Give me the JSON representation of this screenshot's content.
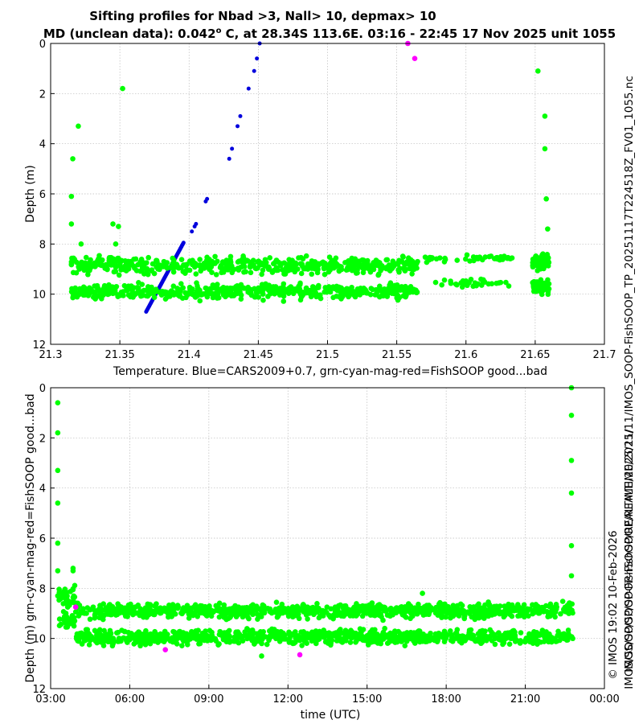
{
  "colors": {
    "model": "#0000dd",
    "good": "#00ff00",
    "suspect": "#ff00ff",
    "grid": "#bbbbbb"
  },
  "side_labels": {
    "file_path": "IMOS_SOOP-FishSOOP_TP_20251117T224518Z_FV01_1055.nc",
    "archive_path": "IMOS/SOOP/SOOP-FishSOOP/REALTIME/2025/11/",
    "credit": "© IMOS 19:02 10-Feb-2026",
    "archive_dir": "IMOS/SOOP/SOOP-FishSOOP/REALTIME/2025/11/"
  },
  "chart_data": [
    {
      "type": "scatter",
      "title": "Sifting profiles for Nbad >3, Nall> 10, depmax> 10",
      "subtitle_pre": "MD (unclean data): 0.042",
      "subtitle_sup": "o",
      "subtitle_post": " C, at 28.34S 113.6E. 03:16 - 22:45 17 Nov 2025 unit 1055",
      "xlabel": "Temperature. Blue=CARS2009+0.7, grn-cyan-mag-red=FishSOOP good...bad",
      "ylabel": "Depth (m)",
      "xlim": [
        21.3,
        21.7
      ],
      "ylim": [
        0,
        12
      ],
      "y_reversed": true,
      "grid": true,
      "xticks": [
        21.3,
        21.35,
        21.4,
        21.45,
        21.5,
        21.55,
        21.6,
        21.65,
        21.7
      ],
      "xtick_labels": [
        "21.3",
        "21.35",
        "21.4",
        "21.45",
        "21.5",
        "21.55",
        "21.6",
        "21.65",
        "21.7"
      ],
      "yticks": [
        0,
        2,
        4,
        6,
        8,
        10,
        12
      ],
      "ytick_labels": [
        "0",
        "2",
        "4",
        "6",
        "8",
        "10",
        "12"
      ],
      "series": [
        {
          "name": "CARS2009+0.7",
          "color_key": "model",
          "points": [
            [
              21.451,
              0.0
            ],
            [
              21.449,
              0.6
            ],
            [
              21.447,
              1.1
            ],
            [
              21.443,
              1.8
            ],
            [
              21.437,
              2.9
            ],
            [
              21.435,
              3.3
            ],
            [
              21.431,
              4.2
            ],
            [
              21.429,
              4.6
            ],
            [
              21.413,
              6.2
            ],
            [
              21.412,
              6.3
            ],
            [
              21.405,
              7.2
            ],
            [
              21.404,
              7.3
            ],
            [
              21.402,
              7.5
            ]
          ],
          "linear_profile": {
            "from": [
              21.369,
              10.7
            ],
            "to": [
              21.396,
              7.95
            ],
            "count": 60
          }
        },
        {
          "name": "FishSOOP good",
          "color_key": "good",
          "points": [
            [
              21.315,
              7.2
            ],
            [
              21.315,
              6.1
            ],
            [
              21.316,
              4.6
            ],
            [
              21.32,
              3.3
            ],
            [
              21.352,
              1.8
            ],
            [
              21.652,
              1.1
            ],
            [
              21.657,
              2.9
            ],
            [
              21.657,
              4.2
            ],
            [
              21.658,
              6.2
            ],
            [
              21.659,
              7.4
            ],
            [
              21.345,
              7.2
            ],
            [
              21.349,
              7.3
            ],
            [
              21.322,
              8.0
            ],
            [
              21.347,
              8.0
            ]
          ],
          "bands": [
            {
              "x_range": [
                21.315,
                21.566
              ],
              "depth_center": 8.85,
              "depth_spread": 0.32,
              "count": 520
            },
            {
              "x_range": [
                21.315,
                21.566
              ],
              "depth_center": 9.9,
              "depth_spread": 0.3,
              "count": 520
            },
            {
              "x_range": [
                21.57,
                21.635
              ],
              "depth_center": 8.55,
              "depth_spread": 0.18,
              "count": 40
            },
            {
              "x_range": [
                21.575,
                21.635
              ],
              "depth_center": 9.55,
              "depth_spread": 0.15,
              "count": 35
            },
            {
              "x_range": [
                21.648,
                21.66
              ],
              "depth_center": 8.7,
              "depth_spread": 0.3,
              "count": 60
            },
            {
              "x_range": [
                21.648,
                21.66
              ],
              "depth_center": 9.7,
              "depth_spread": 0.3,
              "count": 60
            }
          ]
        },
        {
          "name": "FishSOOP bad",
          "color_key": "suspect",
          "points": [
            [
              21.558,
              0.0
            ],
            [
              21.563,
              0.6
            ]
          ]
        }
      ]
    },
    {
      "type": "scatter",
      "xlabel": "time (UTC)",
      "ylabel": "Depth (m) grn-cyan-mag-red=FishSOOP good...bad",
      "xlim": [
        3.0,
        24.0
      ],
      "ylim": [
        0,
        12
      ],
      "y_reversed": true,
      "grid": true,
      "xticks": [
        3,
        6,
        9,
        12,
        15,
        18,
        21,
        24
      ],
      "xtick_labels": [
        "03:00",
        "06:00",
        "09:00",
        "12:00",
        "15:00",
        "18:00",
        "21:00",
        "00:00"
      ],
      "yticks": [
        0,
        2,
        4,
        6,
        8,
        10,
        12
      ],
      "ytick_labels": [
        "0",
        "2",
        "4",
        "6",
        "8",
        "10",
        "12"
      ],
      "series": [
        {
          "name": "FishSOOP good",
          "color_key": "good",
          "points": [
            [
              3.27,
              0.6
            ],
            [
              3.27,
              1.8
            ],
            [
              3.27,
              3.3
            ],
            [
              3.27,
              4.6
            ],
            [
              3.27,
              6.2
            ],
            [
              3.27,
              7.3
            ],
            [
              3.27,
              8.3
            ],
            [
              3.85,
              7.2
            ],
            [
              3.85,
              7.3
            ],
            [
              22.75,
              0.0
            ],
            [
              22.75,
              1.1
            ],
            [
              22.75,
              2.9
            ],
            [
              22.75,
              4.2
            ],
            [
              22.75,
              6.3
            ],
            [
              22.75,
              7.5
            ],
            [
              11.0,
              10.7
            ],
            [
              17.1,
              8.2
            ]
          ],
          "bands": [
            {
              "x_range": [
                3.3,
                3.95
              ],
              "depth_center": 8.4,
              "depth_spread": 0.4,
              "count": 30
            },
            {
              "x_range": [
                3.3,
                3.95
              ],
              "depth_center": 9.3,
              "depth_spread": 0.35,
              "count": 25
            },
            {
              "x_range": [
                3.95,
                22.8
              ],
              "depth_center": 8.9,
              "depth_spread": 0.3,
              "count": 900
            },
            {
              "x_range": [
                3.95,
                22.8
              ],
              "depth_center": 9.95,
              "depth_spread": 0.3,
              "count": 900
            }
          ]
        },
        {
          "name": "FishSOOP bad",
          "color_key": "suspect",
          "points": [
            [
              3.95,
              8.75
            ],
            [
              7.35,
              10.45
            ],
            [
              12.45,
              10.65
            ]
          ]
        }
      ]
    }
  ]
}
